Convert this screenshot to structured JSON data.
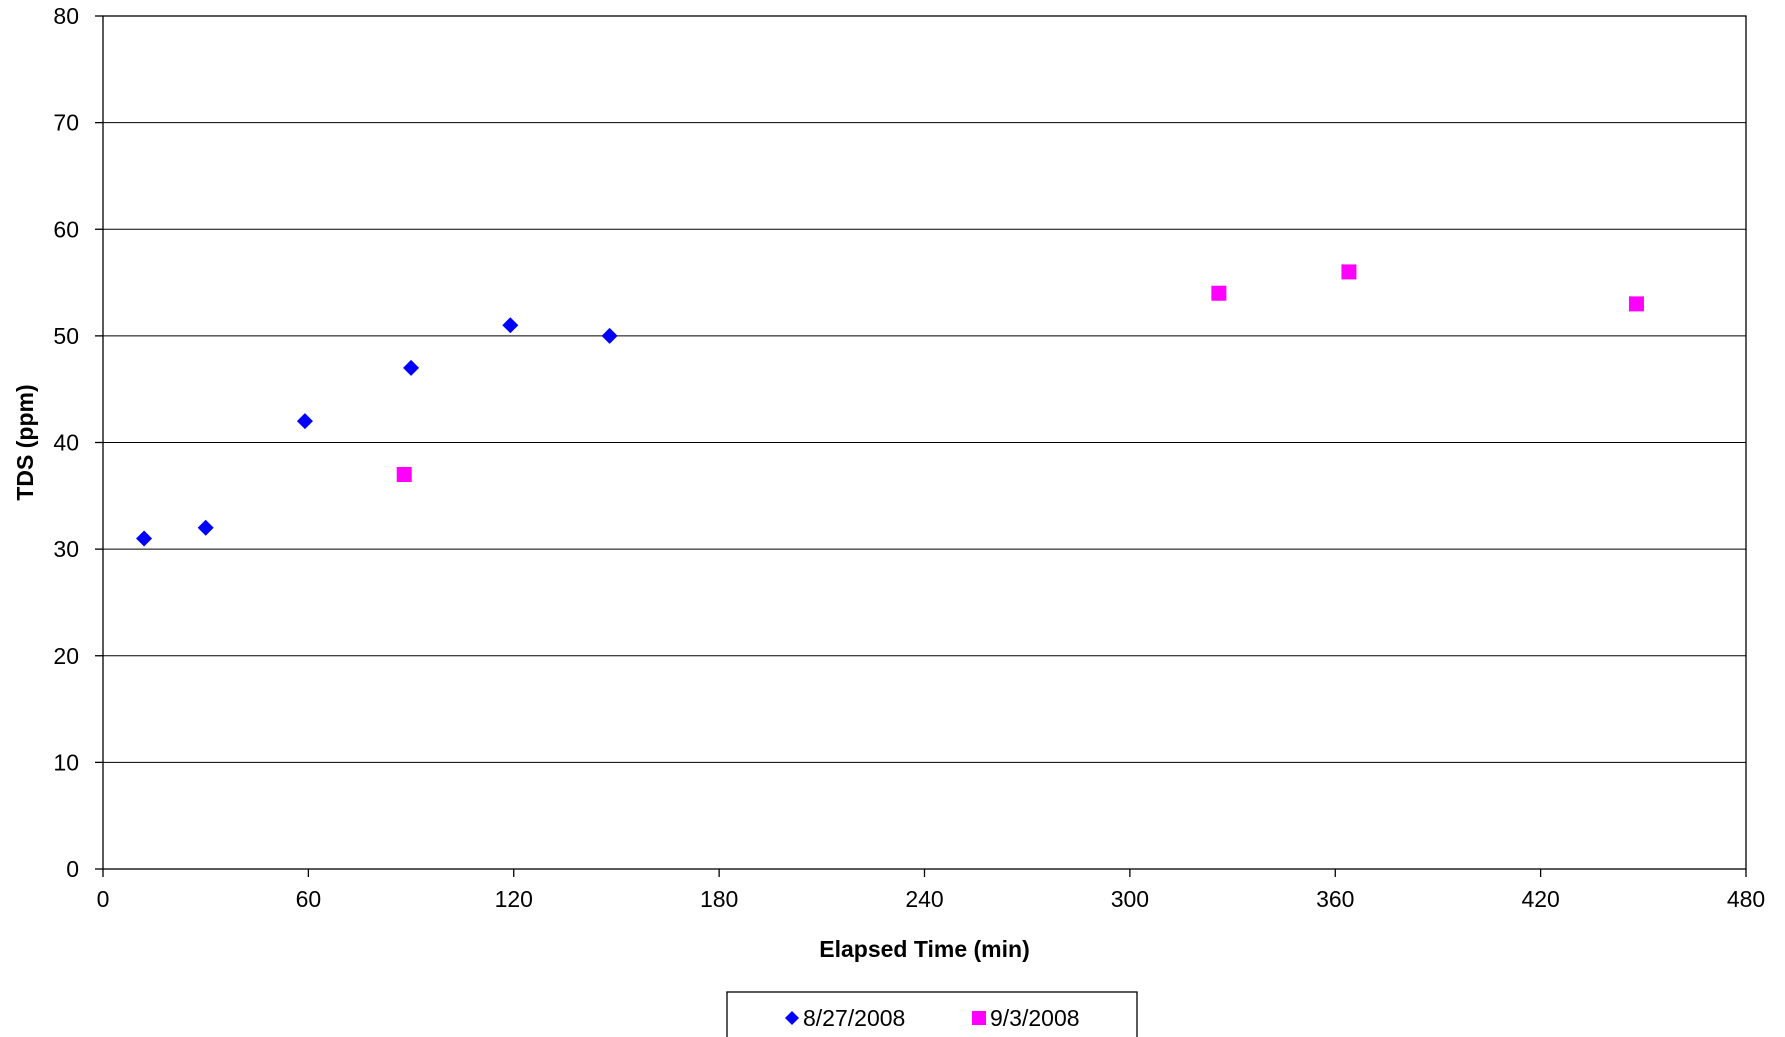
{
  "chart_data": {
    "type": "scatter",
    "title": "",
    "xlabel": "Elapsed Time (min)",
    "ylabel": "TDS (ppm)",
    "xlim": [
      0,
      480
    ],
    "ylim": [
      0,
      80
    ],
    "xticks": [
      0,
      60,
      120,
      180,
      240,
      300,
      360,
      420,
      480
    ],
    "yticks": [
      0,
      10,
      20,
      30,
      40,
      50,
      60,
      70,
      80
    ],
    "x_tick_labels": [
      "0",
      "60",
      "120",
      "180",
      "240",
      "300",
      "360",
      "420",
      "480"
    ],
    "y_tick_labels": [
      "0",
      "10",
      "20",
      "30",
      "40",
      "50",
      "60",
      "70",
      "80"
    ],
    "grid": "horizontal major gridlines",
    "legend_position": "bottom",
    "series": [
      {
        "name": "8/27/2008",
        "marker": "diamond",
        "color": "#0000FF",
        "points": [
          {
            "x": 12,
            "y": 31
          },
          {
            "x": 30,
            "y": 32
          },
          {
            "x": 59,
            "y": 42
          },
          {
            "x": 90,
            "y": 47
          },
          {
            "x": 119,
            "y": 51
          },
          {
            "x": 148,
            "y": 50
          }
        ]
      },
      {
        "name": "9/3/2008",
        "marker": "square",
        "color": "#FF00FF",
        "points": [
          {
            "x": 88,
            "y": 37
          },
          {
            "x": 326,
            "y": 54
          },
          {
            "x": 364,
            "y": 56
          },
          {
            "x": 448,
            "y": 53
          }
        ]
      }
    ]
  }
}
